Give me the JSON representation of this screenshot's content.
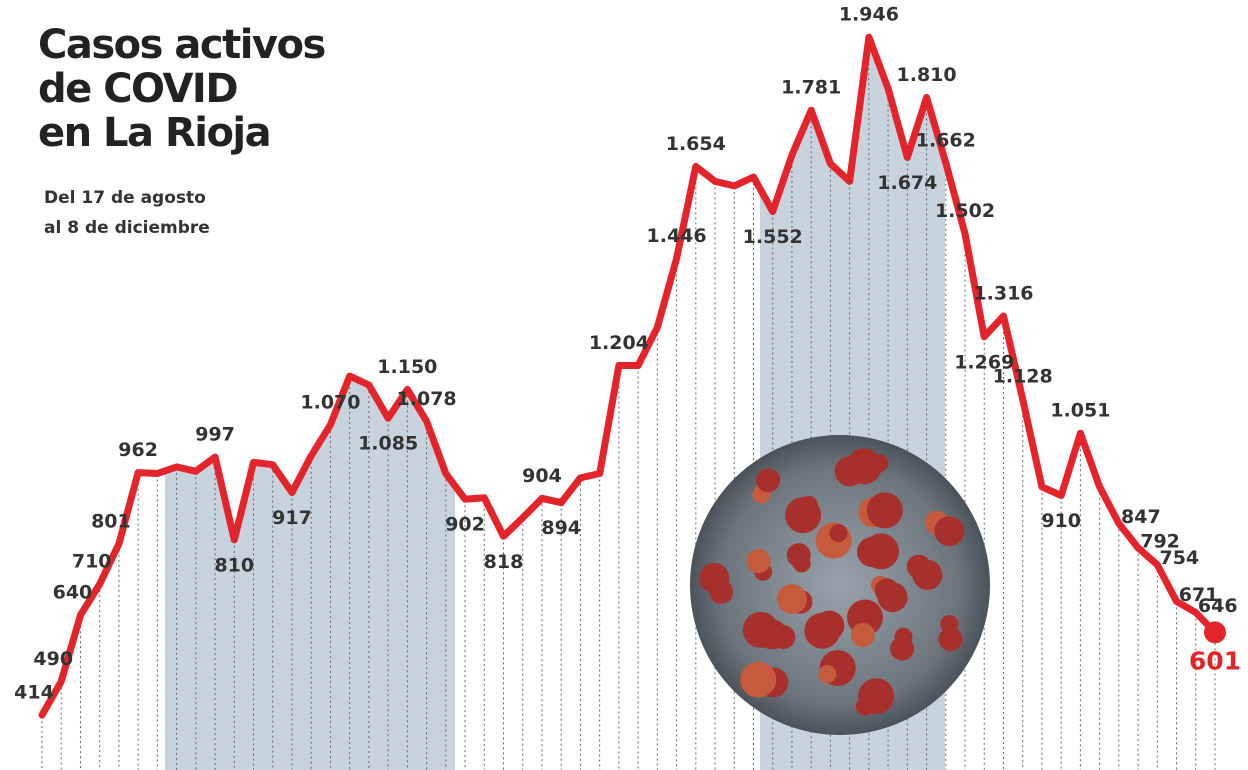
{
  "chart_data": {
    "type": "line",
    "title": [
      "Casos activos",
      "de COVID",
      "en La Rioja"
    ],
    "subtitle": [
      "Del 17 de agosto",
      "al 8 de diciembre"
    ],
    "categories": [
      null,
      null,
      null,
      null,
      null,
      null,
      null,
      null,
      null,
      null,
      null,
      null,
      null,
      null,
      null,
      null,
      null,
      null,
      null,
      null,
      null,
      null,
      null,
      null,
      null,
      null,
      null,
      null,
      null,
      null,
      null,
      null,
      null,
      null,
      null,
      null,
      null,
      null,
      null,
      null,
      null,
      null,
      null,
      null,
      null,
      null,
      null,
      null,
      null,
      null,
      null,
      null,
      null,
      null,
      null,
      null,
      null,
      null,
      null,
      null,
      null,
      null
    ],
    "series": [
      {
        "color": "#e3242b",
        "values": [
          414,
          490,
          640,
          710,
          801,
          962,
          960,
          975,
          965,
          997,
          810,
          985,
          980,
          917,
          1000,
          1070,
          1180,
          1160,
          1085,
          1150,
          1078,
          960,
          902,
          905,
          818,
          860,
          904,
          894,
          950,
          960,
          1204,
          1204,
          1290,
          1446,
          1654,
          1620,
          1610,
          1630,
          1552,
          1680,
          1781,
          1660,
          1620,
          1946,
          1830,
          1674,
          1810,
          1662,
          1502,
          1269,
          1316,
          1128,
          930,
          910,
          1051,
          930,
          847,
          792,
          754,
          671,
          646,
          601
        ],
        "value_labels": [
          "414",
          "490",
          "640",
          "710",
          "801",
          "962",
          null,
          null,
          null,
          "997",
          "810",
          null,
          null,
          "917",
          null,
          "1.070",
          null,
          null,
          "1.085",
          "1.150",
          "1.078",
          null,
          "902",
          null,
          "818",
          null,
          "904",
          "894",
          null,
          null,
          "1.204",
          null,
          null,
          "1.446",
          "1.654",
          null,
          null,
          null,
          "1.552",
          null,
          "1.781",
          null,
          null,
          "1.946",
          null,
          "1.674",
          "1.810",
          "1.662",
          "1.502",
          "1.269",
          "1.316",
          "1.128",
          null,
          "910",
          "1.051",
          null,
          "847",
          "792",
          "754",
          "671",
          "646",
          "601"
        ]
      }
    ],
    "ylim": [
      290,
      2030
    ]
  }
}
